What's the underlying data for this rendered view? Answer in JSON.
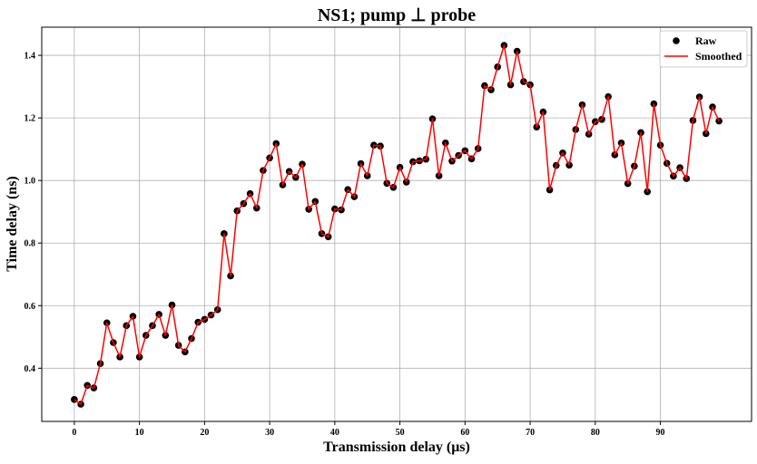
{
  "chart_data": {
    "type": "line",
    "title": "NS1; pump ⊥ probe",
    "xlabel": "Transmission delay (μs)",
    "ylabel": "Time delay (ns)",
    "xlim": [
      -5,
      104
    ],
    "ylim": [
      0.23,
      1.49
    ],
    "xticks": [
      0,
      10,
      20,
      30,
      40,
      50,
      60,
      70,
      80,
      90
    ],
    "yticks": [
      0.4,
      0.6,
      0.8,
      1.0,
      1.2,
      1.4
    ],
    "ytick_labels": [
      "0.4",
      "0.6",
      "0.8",
      "1.0",
      "1.2",
      "1.4"
    ],
    "grid": true,
    "legend_position": "top-right",
    "x": [
      0,
      1,
      2,
      3,
      4,
      5,
      6,
      7,
      8,
      9,
      10,
      11,
      12,
      13,
      14,
      15,
      16,
      17,
      18,
      19,
      20,
      21,
      22,
      23,
      24,
      25,
      26,
      27,
      28,
      29,
      30,
      31,
      32,
      33,
      34,
      35,
      36,
      37,
      38,
      39,
      40,
      41,
      42,
      43,
      44,
      45,
      46,
      47,
      48,
      49,
      50,
      51,
      52,
      53,
      54,
      55,
      56,
      57,
      58,
      59,
      60,
      61,
      62,
      63,
      64,
      65,
      66,
      67,
      68,
      69,
      70,
      71,
      72,
      73,
      74,
      75,
      76,
      77,
      78,
      79,
      80,
      81,
      82,
      83,
      84,
      85,
      86,
      87,
      88,
      89,
      90,
      91,
      92,
      93,
      94,
      95,
      96,
      97,
      98,
      99
    ],
    "series": [
      {
        "name": "Raw",
        "kind": "scatter",
        "color": "#000000",
        "values": [
          0.3,
          0.285,
          0.345,
          0.337,
          0.415,
          0.545,
          0.482,
          0.436,
          0.536,
          0.566,
          0.436,
          0.505,
          0.536,
          0.572,
          0.505,
          0.602,
          0.473,
          0.452,
          0.495,
          0.547,
          0.556,
          0.57,
          0.587,
          0.83,
          0.695,
          0.903,
          0.926,
          0.958,
          0.912,
          1.032,
          1.072,
          1.118,
          0.986,
          1.029,
          1.01,
          1.052,
          0.908,
          0.933,
          0.83,
          0.82,
          0.909,
          0.906,
          0.971,
          0.948,
          1.054,
          1.015,
          1.113,
          1.11,
          0.991,
          0.978,
          1.042,
          0.995,
          1.06,
          1.063,
          1.068,
          1.197,
          1.015,
          1.12,
          1.062,
          1.08,
          1.095,
          1.069,
          1.102,
          1.303,
          1.29,
          1.363,
          1.432,
          1.306,
          1.413,
          1.316,
          1.306,
          1.171,
          1.219,
          0.97,
          1.048,
          1.088,
          1.049,
          1.163,
          1.242,
          1.148,
          1.188,
          1.195,
          1.268,
          1.082,
          1.12,
          0.99,
          1.046,
          1.153,
          0.964,
          1.245,
          1.113,
          1.055,
          1.014,
          1.041,
          1.006,
          1.192,
          1.267,
          1.15,
          1.235,
          1.19
        ]
      },
      {
        "name": "Smoothed",
        "kind": "line",
        "color": "#ff0000",
        "values": [
          0.3,
          0.285,
          0.345,
          0.337,
          0.415,
          0.545,
          0.482,
          0.436,
          0.536,
          0.566,
          0.436,
          0.505,
          0.536,
          0.572,
          0.505,
          0.602,
          0.473,
          0.452,
          0.495,
          0.547,
          0.556,
          0.57,
          0.587,
          0.83,
          0.695,
          0.903,
          0.926,
          0.958,
          0.912,
          1.032,
          1.072,
          1.118,
          0.986,
          1.029,
          1.01,
          1.052,
          0.908,
          0.933,
          0.83,
          0.82,
          0.909,
          0.906,
          0.971,
          0.948,
          1.054,
          1.015,
          1.113,
          1.11,
          0.991,
          0.978,
          1.042,
          0.995,
          1.06,
          1.063,
          1.068,
          1.197,
          1.015,
          1.12,
          1.062,
          1.08,
          1.095,
          1.069,
          1.102,
          1.303,
          1.29,
          1.363,
          1.432,
          1.306,
          1.413,
          1.316,
          1.306,
          1.171,
          1.219,
          0.97,
          1.048,
          1.088,
          1.049,
          1.163,
          1.242,
          1.148,
          1.188,
          1.195,
          1.268,
          1.082,
          1.12,
          0.99,
          1.046,
          1.153,
          0.964,
          1.245,
          1.113,
          1.055,
          1.014,
          1.041,
          1.006,
          1.192,
          1.267,
          1.15,
          1.235,
          1.19
        ]
      }
    ]
  }
}
